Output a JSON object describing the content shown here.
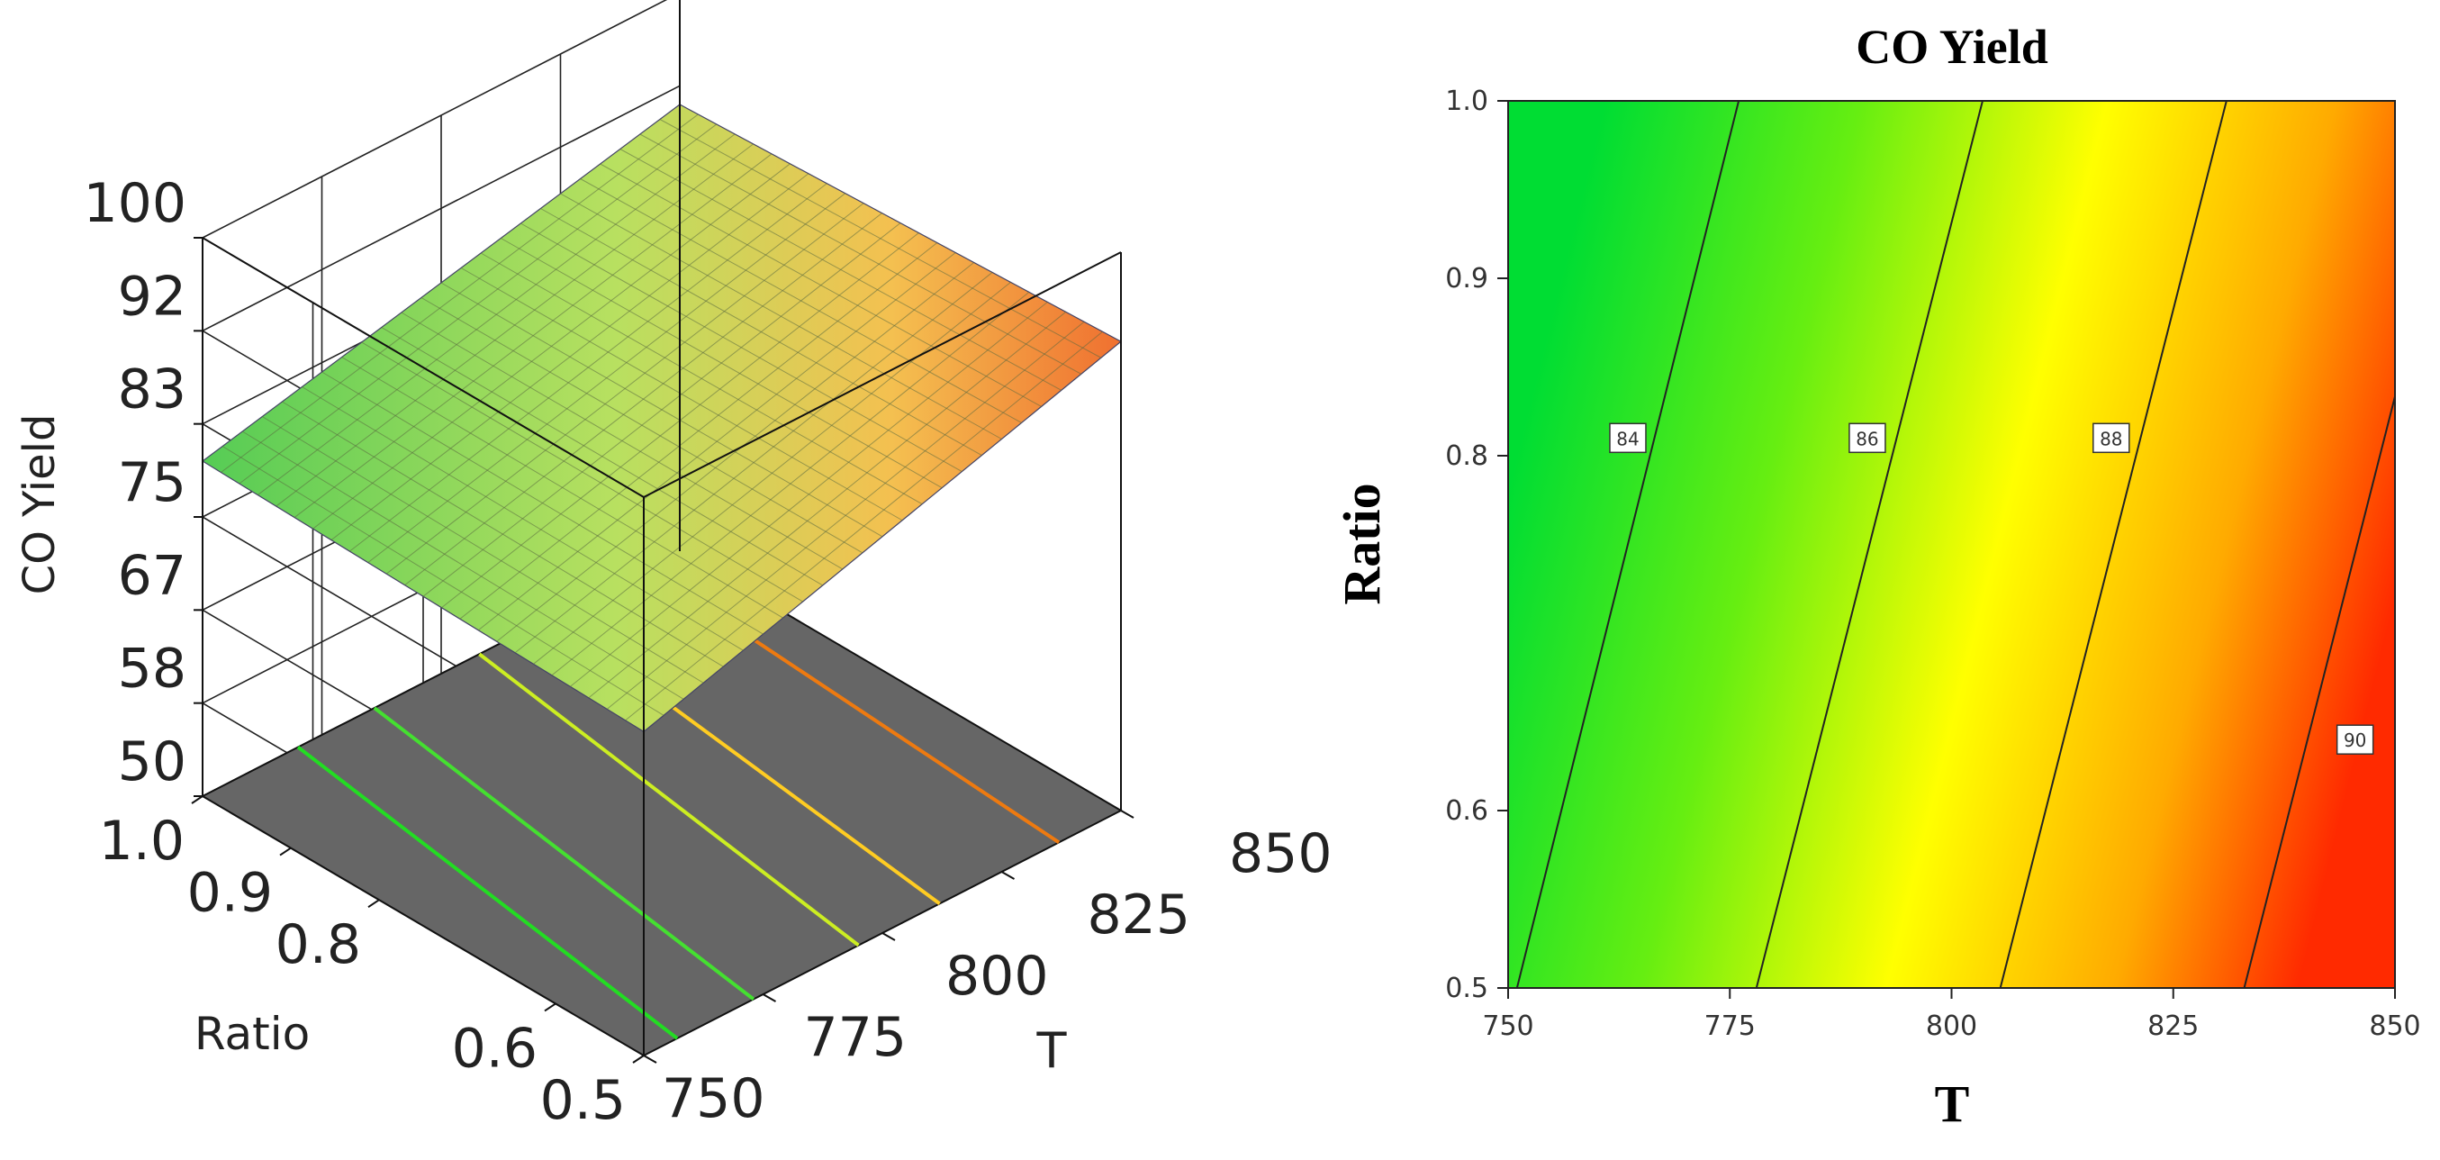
{
  "chart_data": [
    {
      "type": "surface3d",
      "zlabel": "CO Yield",
      "xlabel": "T",
      "ylabel": "Ratio",
      "z_ticks": [
        "100",
        "92",
        "83",
        "75",
        "67",
        "58",
        "50"
      ],
      "t_ticks": [
        "750",
        "775",
        "800",
        "825",
        "850"
      ],
      "ratio_ticks": [
        "0.5",
        "0.6",
        "0.8",
        "0.9",
        "1.0"
      ],
      "t_range": [
        750,
        850
      ],
      "ratio_range": [
        0.5,
        1.0
      ],
      "z_range": [
        50,
        100
      ],
      "corners": [
        {
          "T": 750,
          "Ratio": 0.5,
          "CO Yield": 79.0
        },
        {
          "T": 750,
          "Ratio": 1.0,
          "CO Yield": 80.0
        },
        {
          "T": 850,
          "Ratio": 0.5,
          "CO Yield": 92.0
        },
        {
          "T": 850,
          "Ratio": 1.0,
          "CO Yield": 90.0
        }
      ],
      "floor_contours": [
        {
          "color": "#22dd22",
          "t_at_ratio_1": 770,
          "t_at_ratio_05": 757
        },
        {
          "color": "#44e030",
          "t_at_ratio_1": 786,
          "t_at_ratio_05": 773
        },
        {
          "color": "#ccee22",
          "t_at_ratio_1": 808,
          "t_at_ratio_05": 795
        },
        {
          "color": "#ffcc22",
          "t_at_ratio_1": 823,
          "t_at_ratio_05": 812
        },
        {
          "color": "#ee7a10",
          "t_at_ratio_1": 843,
          "t_at_ratio_05": 837
        }
      ],
      "grid": true
    },
    {
      "type": "contour",
      "title": "CO Yield",
      "xlabel": "T",
      "ylabel": "Ratio",
      "xlim": [
        750,
        850
      ],
      "ylim": [
        0.5,
        1.0
      ],
      "x_ticks": [
        "750",
        "775",
        "800",
        "825",
        "850"
      ],
      "y_ticks": [
        "0.5",
        "0.6",
        "0.8",
        "0.9",
        "1.0"
      ],
      "contours": [
        {
          "label": "84",
          "t_at_ratio_1": 776,
          "t_at_ratio_05": 751,
          "label_t": 763.5,
          "label_ratio": 0.81
        },
        {
          "label": "86",
          "t_at_ratio_1": 803.5,
          "t_at_ratio_05": 778,
          "label_t": 790.5,
          "label_ratio": 0.81
        },
        {
          "label": "88",
          "t_at_ratio_1": 831,
          "t_at_ratio_05": 805.5,
          "label_t": 818,
          "label_ratio": 0.81
        },
        {
          "label": "90",
          "t_at_ratio_1": 858.5,
          "t_at_ratio_05": 833,
          "label_t": 845.5,
          "label_ratio": 0.64
        }
      ],
      "colormap": [
        "#00dd33",
        "#88f010",
        "#ffff00",
        "#ff9900",
        "#ff3300"
      ]
    }
  ]
}
